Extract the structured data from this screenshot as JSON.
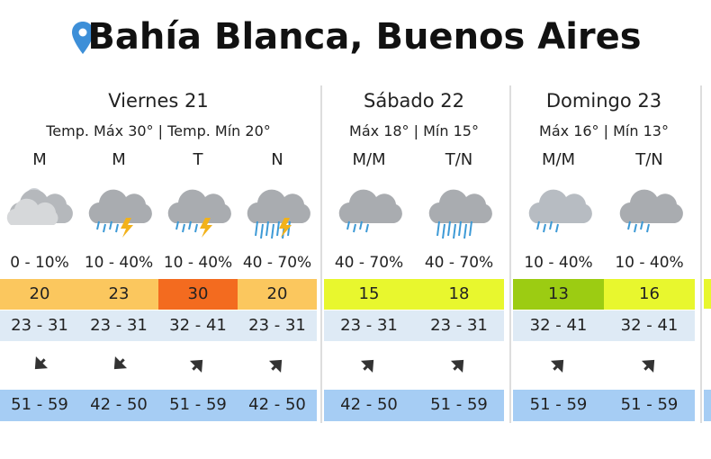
{
  "header": {
    "title": "Bahía Blanca, Buenos Aires"
  },
  "days": [
    {
      "name": "Viernes 21",
      "summary": "Temp. Máx 30° | Temp. Mín 20°",
      "periods": [
        {
          "label": "M",
          "rain": "0 - 10%",
          "temp": 20,
          "temp_color": "#fbc75e",
          "humidity": "23 - 31",
          "wind": "51 - 59"
        },
        {
          "label": "M",
          "rain": "10 - 40%",
          "temp": 23,
          "temp_color": "#fbc75e",
          "humidity": "23 - 31",
          "wind": "42 - 50"
        },
        {
          "label": "T",
          "rain": "10 - 40%",
          "temp": 30,
          "temp_color": "#f36b1f",
          "humidity": "32 - 41",
          "wind": "51 - 59"
        },
        {
          "label": "N",
          "rain": "40 - 70%",
          "temp": 20,
          "temp_color": "#fbc75e",
          "humidity": "23 - 31",
          "wind": "42 - 50"
        }
      ]
    },
    {
      "name": "Sábado 22",
      "summary": "Máx 18° | Mín 15°",
      "periods": [
        {
          "label": "M/M",
          "rain": "40 - 70%",
          "temp": 15,
          "temp_color": "#e8f72e",
          "humidity": "23 - 31",
          "wind": "42 - 50"
        },
        {
          "label": "T/N",
          "rain": "40 - 70%",
          "temp": 18,
          "temp_color": "#e8f72e",
          "humidity": "23 - 31",
          "wind": "51 - 59"
        }
      ]
    },
    {
      "name": "Domingo 23",
      "summary": "Máx 16° | Mín 13°",
      "periods": [
        {
          "label": "M/M",
          "rain": "10 - 40%",
          "temp": 13,
          "temp_color": "#9ccc12",
          "humidity": "32 - 41",
          "wind": "51 - 59"
        },
        {
          "label": "T/N",
          "rain": "10 - 40%",
          "temp": 16,
          "temp_color": "#e8f72e",
          "humidity": "32 - 41",
          "wind": "51 - 59"
        }
      ]
    }
  ]
}
